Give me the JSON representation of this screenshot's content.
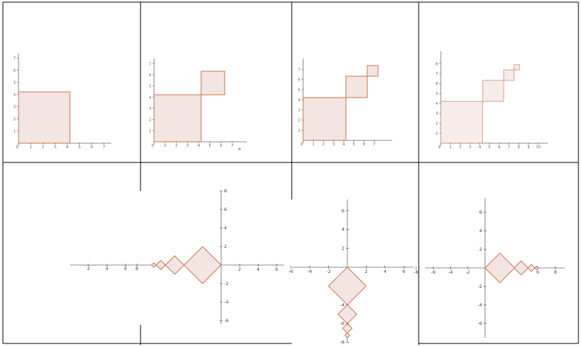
{
  "panels_top": [
    {
      "yticks": [
        "1",
        "2",
        "3",
        "4",
        "5",
        "6",
        "7"
      ],
      "xticks": [
        "1",
        "2",
        "3",
        "4",
        "5",
        "6",
        "7"
      ],
      "squares": [
        {
          "x": 0,
          "y": 0,
          "s": 4
        }
      ]
    },
    {
      "yticks": [
        "1",
        "2",
        "3",
        "4",
        "5",
        "6",
        "7"
      ],
      "xticks": [
        "1",
        "2",
        "3",
        "4",
        "5",
        "6",
        "7"
      ],
      "xlabel": "A",
      "squares": [
        {
          "x": 0,
          "y": 0,
          "s": 4
        },
        {
          "x": 4,
          "y": 4,
          "s": 2
        }
      ]
    },
    {
      "yticks": [
        "1",
        "2",
        "3",
        "4",
        "5",
        "6",
        "7"
      ],
      "xticks": [
        "1",
        "2",
        "3",
        "4",
        "5",
        "6",
        "7"
      ],
      "squares": [
        {
          "x": 0,
          "y": 0,
          "s": 4
        },
        {
          "x": 4,
          "y": 4,
          "s": 2
        },
        {
          "x": 6,
          "y": 6,
          "s": 1
        }
      ]
    },
    {
      "yticks": [
        "1",
        "2",
        "3",
        "4",
        "5",
        "6",
        "7",
        "8"
      ],
      "xticks": [
        "1",
        "2",
        "3",
        "4",
        "5",
        "6",
        "7",
        "8",
        "9",
        "10"
      ],
      "squares": [
        {
          "x": 0,
          "y": 0,
          "s": 4
        },
        {
          "x": 4,
          "y": 4,
          "s": 2
        },
        {
          "x": 6,
          "y": 6,
          "s": 1
        },
        {
          "x": 7,
          "y": 7,
          "s": 0.5
        }
      ]
    }
  ],
  "panels_bottom": [
    {
      "xticks": [
        "2",
        "4",
        "6",
        "8"
      ]
    },
    {
      "xticks": [
        "2",
        "4",
        "6"
      ],
      "yticks": [
        "8",
        "6",
        "4",
        "2",
        "-2",
        "-4",
        "-6"
      ]
    },
    {
      "xticks": [
        "-6",
        "-4",
        "-2",
        "2",
        "4",
        "6"
      ],
      "yticks": [
        "6",
        "4",
        "2",
        "-2",
        "-4",
        "-6",
        "-8"
      ]
    },
    {
      "xticks": [
        "-8",
        "-6",
        "-4",
        "-2",
        "2",
        "4",
        "6",
        "8"
      ],
      "yticks": [
        "6",
        "4",
        "2",
        "-2",
        "-4",
        "-6"
      ]
    }
  ]
}
